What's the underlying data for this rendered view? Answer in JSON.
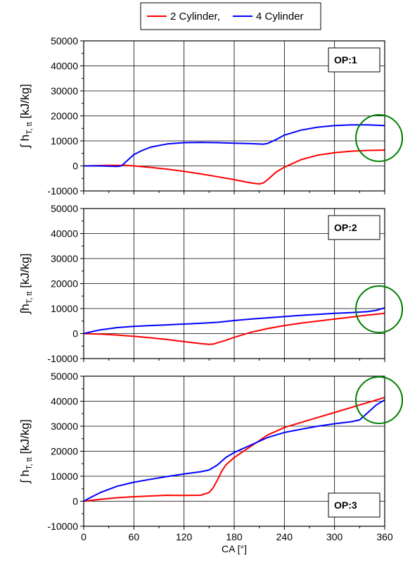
{
  "chart_data": [
    {
      "type": "line",
      "annotation": "OP:1",
      "ylabel_main": "∫ h",
      "ylabel_sub": "T, tt",
      "ylabel_unit": " [kJ/kg]",
      "ylim": [
        -10000,
        50000
      ],
      "yticks": [
        "50000",
        "40000",
        "30000",
        "20000",
        "10000",
        "0",
        "-10000"
      ],
      "xlim": [
        0,
        360
      ],
      "grid": true,
      "series": [
        {
          "name": "2 Cylinder,",
          "color": "#ff0000",
          "x": [
            0,
            30,
            50,
            60,
            80,
            100,
            120,
            140,
            160,
            180,
            200,
            210,
            215,
            220,
            230,
            240,
            260,
            280,
            300,
            320,
            340,
            360
          ],
          "y": [
            0,
            200,
            200,
            0,
            -600,
            -1300,
            -2200,
            -3200,
            -4300,
            -5500,
            -6800,
            -7200,
            -6800,
            -5500,
            -2500,
            -500,
            2500,
            4300,
            5300,
            5900,
            6200,
            6300
          ]
        },
        {
          "name": "4 Cylinder",
          "color": "#0000ff",
          "x": [
            0,
            20,
            40,
            45,
            50,
            55,
            60,
            70,
            80,
            100,
            120,
            140,
            160,
            180,
            200,
            215,
            220,
            230,
            240,
            260,
            280,
            300,
            320,
            340,
            360
          ],
          "y": [
            0,
            0,
            -200,
            0,
            1500,
            3000,
            4500,
            6200,
            7500,
            8800,
            9300,
            9400,
            9300,
            9100,
            8900,
            8700,
            9000,
            10500,
            12300,
            14300,
            15500,
            16100,
            16400,
            16400,
            16100
          ]
        }
      ]
    },
    {
      "type": "line",
      "annotation": "OP:2",
      "ylabel_main": "∫h",
      "ylabel_sub": "T, tt",
      "ylabel_unit": " [kJ/kg]",
      "ylim": [
        -10000,
        50000
      ],
      "yticks": [
        "50000",
        "40000",
        "30000",
        "20000",
        "10000",
        "0",
        "-10000"
      ],
      "xlim": [
        0,
        360
      ],
      "grid": true,
      "series": [
        {
          "name": "2 Cylinder,",
          "color": "#ff0000",
          "x": [
            0,
            20,
            40,
            60,
            80,
            100,
            120,
            140,
            150,
            155,
            160,
            170,
            180,
            200,
            220,
            240,
            260,
            280,
            300,
            320,
            340,
            360
          ],
          "y": [
            0,
            -200,
            -600,
            -1100,
            -1700,
            -2400,
            -3200,
            -4000,
            -4300,
            -4200,
            -3700,
            -2700,
            -1500,
            500,
            2000,
            3200,
            4200,
            5000,
            5800,
            6600,
            7400,
            8100
          ]
        },
        {
          "name": "4 Cylinder",
          "color": "#0000ff",
          "x": [
            0,
            10,
            20,
            40,
            60,
            80,
            100,
            120,
            140,
            160,
            180,
            200,
            220,
            240,
            260,
            280,
            300,
            320,
            340,
            350,
            360
          ],
          "y": [
            0,
            800,
            1500,
            2400,
            2900,
            3200,
            3500,
            3800,
            4100,
            4500,
            5200,
            5800,
            6300,
            6800,
            7300,
            7700,
            8100,
            8400,
            8800,
            9300,
            10300
          ]
        }
      ]
    },
    {
      "type": "line",
      "annotation": "OP:3",
      "ylabel_main": "∫ h",
      "ylabel_sub": "T, tt",
      "ylabel_unit": " [kJ/kg]",
      "ylim": [
        -10000,
        50000
      ],
      "yticks": [
        "50000",
        "40000",
        "30000",
        "20000",
        "10000",
        "0",
        "-10000"
      ],
      "xlim": [
        0,
        360
      ],
      "xticks": [
        "0",
        "60",
        "120",
        "180",
        "240",
        "300",
        "360"
      ],
      "xlabel": "CA [°]",
      "grid": true,
      "series": [
        {
          "name": "2 Cylinder,",
          "color": "#ff0000",
          "x": [
            0,
            20,
            40,
            60,
            80,
            100,
            120,
            140,
            150,
            155,
            160,
            165,
            170,
            180,
            200,
            220,
            240,
            260,
            280,
            300,
            320,
            340,
            360
          ],
          "y": [
            0,
            800,
            1400,
            1800,
            2100,
            2400,
            2300,
            2400,
            3500,
            5500,
            8500,
            12000,
            14500,
            17500,
            22000,
            26500,
            29500,
            31500,
            33500,
            35500,
            37500,
            39500,
            41500
          ]
        },
        {
          "name": "4 Cylinder",
          "color": "#0000ff",
          "x": [
            0,
            10,
            20,
            40,
            60,
            80,
            100,
            120,
            140,
            150,
            160,
            170,
            180,
            200,
            220,
            240,
            260,
            280,
            300,
            320,
            330,
            340,
            350,
            360
          ],
          "y": [
            0,
            1800,
            3500,
            6000,
            7600,
            8800,
            9900,
            10900,
            11800,
            12500,
            14500,
            17500,
            19500,
            22500,
            25500,
            27500,
            28800,
            30000,
            31000,
            31800,
            32500,
            35500,
            38500,
            40500
          ]
        }
      ]
    }
  ],
  "legend": {
    "items": [
      {
        "label": "2 Cylinder,",
        "color": "#ff0000"
      },
      {
        "label": "4 Cylinder",
        "color": "#0000ff"
      }
    ]
  },
  "highlight": {
    "color": "#008000"
  }
}
